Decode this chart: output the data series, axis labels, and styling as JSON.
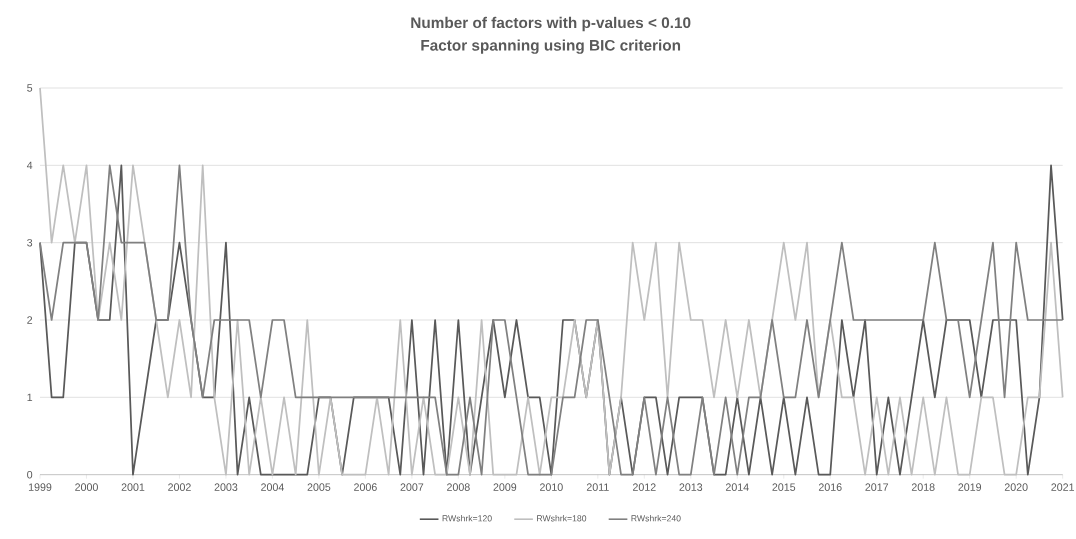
{
  "chart_data": {
    "type": "line",
    "title": "Number of factors with p-values < 0.10",
    "subtitle": "Factor spanning using BIC criterion",
    "x": [
      1999,
      1999.25,
      1999.5,
      1999.75,
      2000,
      2000.25,
      2000.5,
      2000.75,
      2001,
      2001.25,
      2001.5,
      2001.75,
      2002,
      2002.25,
      2002.5,
      2002.75,
      2003,
      2003.25,
      2003.5,
      2003.75,
      2004,
      2004.25,
      2004.5,
      2004.75,
      2005,
      2005.25,
      2005.5,
      2005.75,
      2006,
      2006.25,
      2006.5,
      2006.75,
      2007,
      2007.25,
      2007.5,
      2007.75,
      2008,
      2008.25,
      2008.5,
      2008.75,
      2009,
      2009.25,
      2009.5,
      2009.75,
      2010,
      2010.25,
      2010.5,
      2010.75,
      2011,
      2011.25,
      2011.5,
      2011.75,
      2012,
      2012.25,
      2012.5,
      2012.75,
      2013,
      2013.25,
      2013.5,
      2013.75,
      2014,
      2014.25,
      2014.5,
      2014.75,
      2015,
      2015.25,
      2015.5,
      2015.75,
      2016,
      2016.25,
      2016.5,
      2016.75,
      2017,
      2017.25,
      2017.5,
      2017.75,
      2018,
      2018.25,
      2018.5,
      2018.75,
      2019,
      2019.25,
      2019.5,
      2019.75,
      2020,
      2020.25,
      2020.5,
      2020.75,
      2021
    ],
    "series": [
      {
        "name": "RWshrk=120",
        "color": "#595959",
        "values": [
          3,
          1,
          1,
          3,
          3,
          2,
          2,
          4,
          0,
          1,
          2,
          2,
          3,
          2,
          1,
          1,
          3,
          0,
          1,
          0,
          0,
          0,
          0,
          0,
          1,
          1,
          0,
          1,
          1,
          1,
          1,
          0,
          2,
          0,
          2,
          0,
          2,
          0,
          1,
          2,
          1,
          2,
          1,
          1,
          0,
          2,
          2,
          1,
          2,
          0,
          1,
          0,
          1,
          1,
          0,
          1,
          1,
          1,
          0,
          0,
          1,
          0,
          1,
          0,
          1,
          0,
          1,
          0,
          0,
          2,
          1,
          2,
          0,
          1,
          0,
          1,
          2,
          1,
          2,
          2,
          2,
          1,
          2,
          2,
          2,
          0,
          1,
          4,
          2
        ]
      },
      {
        "name": "RWshrk=180",
        "color": "#bfbfbf",
        "values": [
          5,
          3,
          4,
          3,
          4,
          2,
          3,
          2,
          4,
          3,
          2,
          1,
          2,
          1,
          4,
          1,
          0,
          2,
          0,
          1,
          0,
          1,
          0,
          2,
          0,
          1,
          0,
          0,
          0,
          1,
          0,
          2,
          0,
          1,
          0,
          0,
          1,
          0,
          2,
          0,
          0,
          0,
          1,
          0,
          1,
          1,
          2,
          1,
          2,
          0,
          1,
          3,
          2,
          3,
          1,
          3,
          2,
          2,
          1,
          2,
          1,
          2,
          1,
          2,
          3,
          2,
          3,
          1,
          2,
          1,
          1,
          0,
          1,
          0,
          1,
          0,
          1,
          0,
          1,
          0,
          0,
          1,
          1,
          0,
          0,
          1,
          1,
          3,
          1
        ]
      },
      {
        "name": "RWshrk=240",
        "color": "#808080",
        "values": [
          3,
          2,
          3,
          3,
          3,
          2,
          4,
          3,
          3,
          3,
          2,
          2,
          4,
          2,
          1,
          2,
          2,
          2,
          2,
          1,
          2,
          2,
          1,
          1,
          1,
          1,
          1,
          1,
          1,
          1,
          1,
          1,
          1,
          1,
          1,
          0,
          0,
          1,
          0,
          2,
          2,
          1,
          0,
          0,
          0,
          1,
          1,
          2,
          2,
          1,
          0,
          0,
          1,
          0,
          1,
          0,
          0,
          1,
          0,
          1,
          0,
          1,
          1,
          2,
          1,
          1,
          2,
          1,
          2,
          3,
          2,
          2,
          2,
          2,
          2,
          2,
          2,
          3,
          2,
          2,
          1,
          2,
          3,
          1,
          3,
          2,
          2,
          2,
          2
        ]
      }
    ],
    "xlim": [
      1999,
      2021
    ],
    "xticks": [
      1999,
      2000,
      2001,
      2002,
      2003,
      2004,
      2005,
      2006,
      2007,
      2008,
      2009,
      2010,
      2011,
      2012,
      2013,
      2014,
      2015,
      2016,
      2017,
      2018,
      2019,
      2020,
      2021
    ],
    "ylim": [
      0,
      5
    ],
    "yticks": [
      0,
      1,
      2,
      3,
      4,
      5
    ],
    "grid": "y",
    "legend": "bottom",
    "marker": "none",
    "line_style": "solid"
  }
}
